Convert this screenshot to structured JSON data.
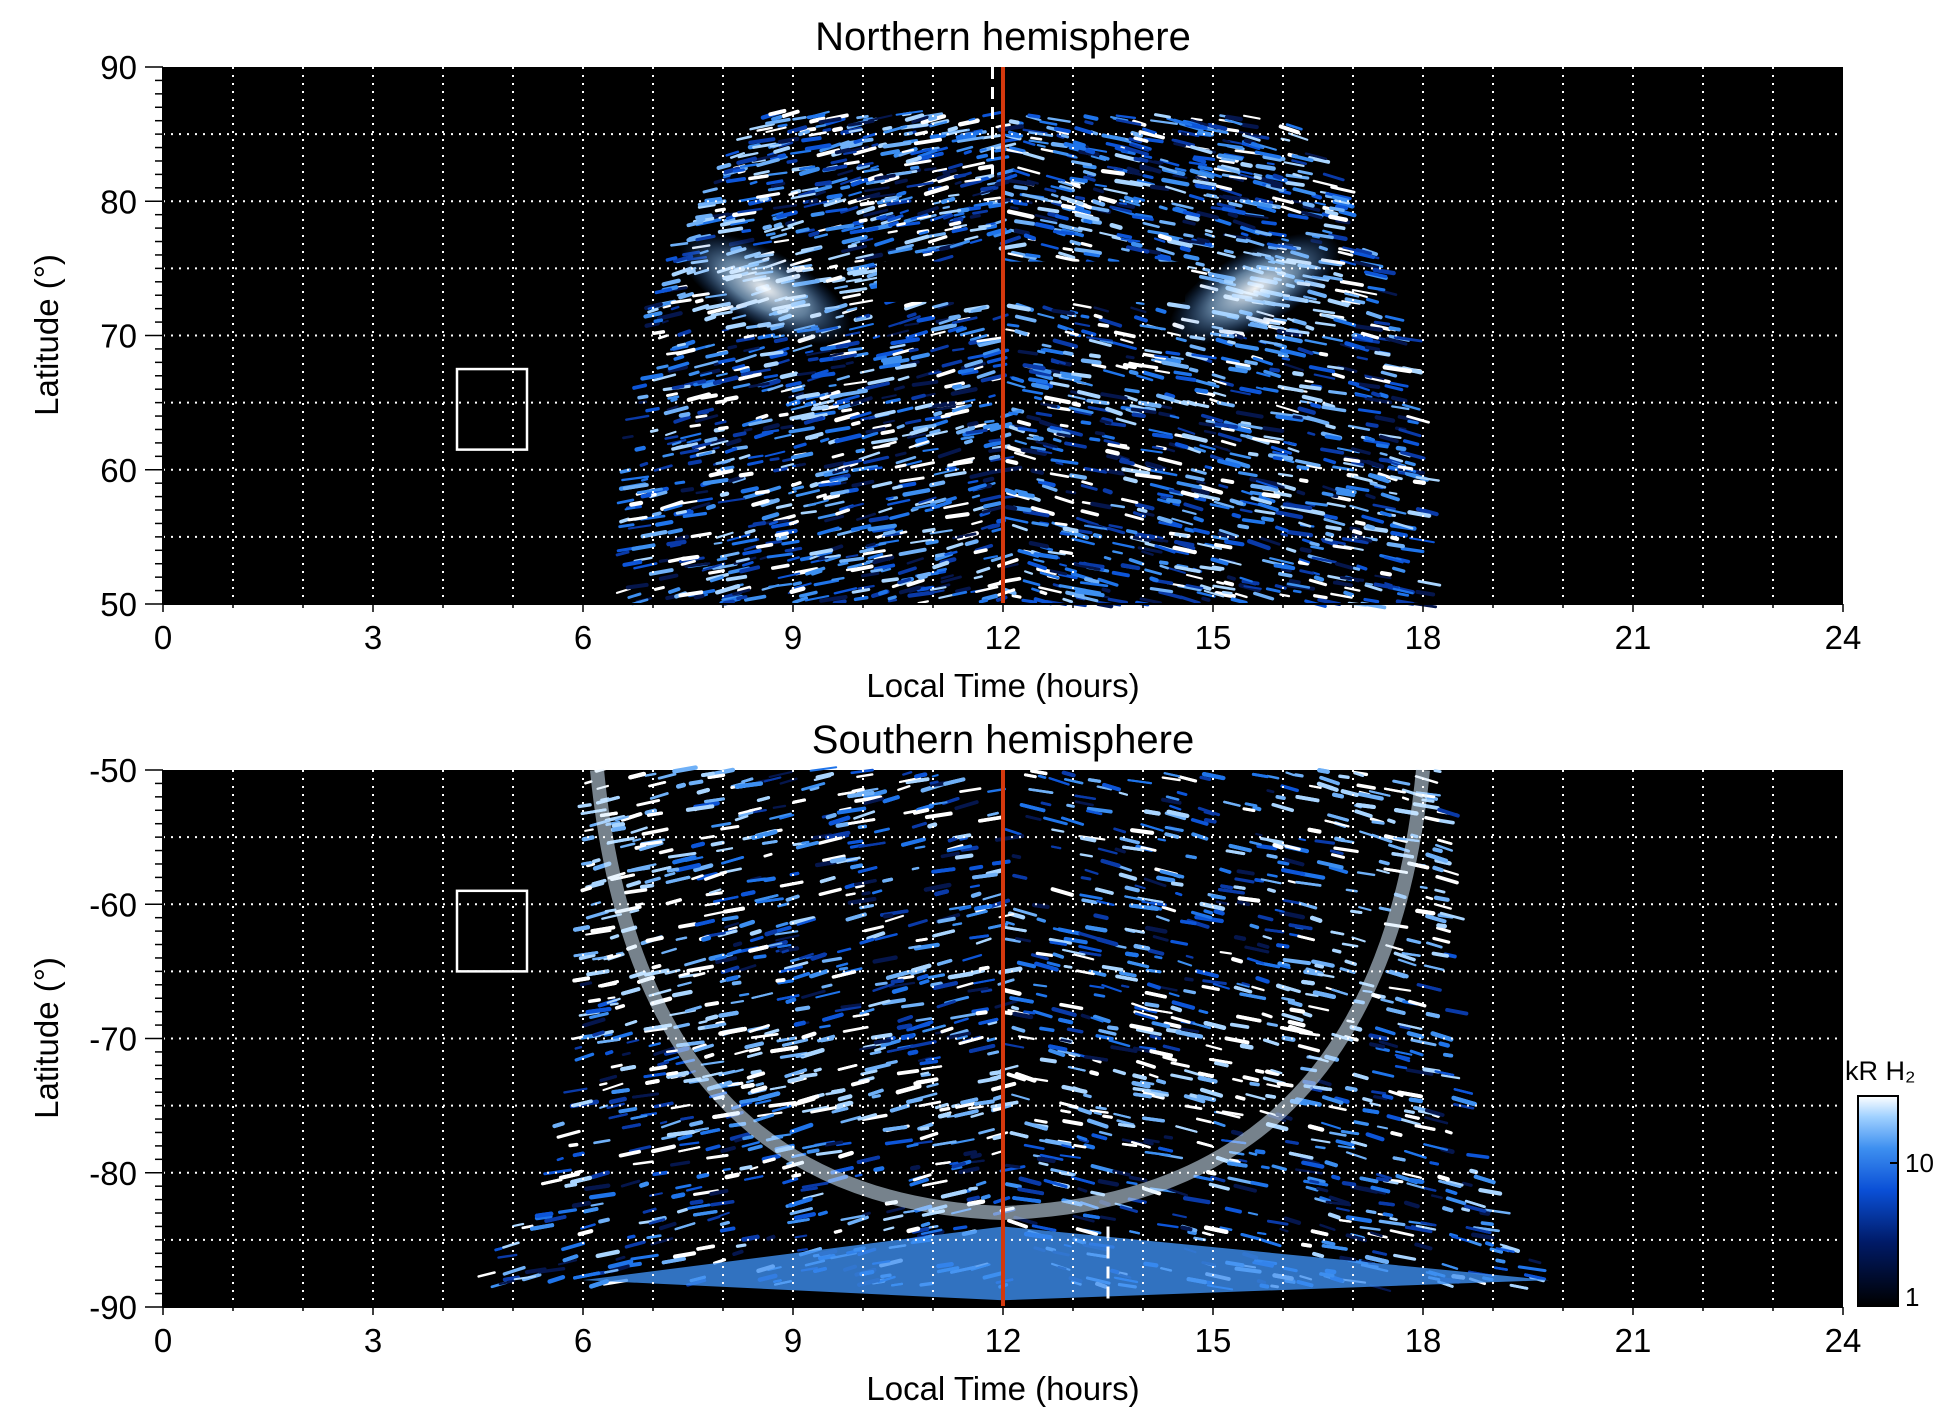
{
  "chart_data": [
    {
      "type": "heatmap",
      "title": "Northern hemisphere",
      "xlabel": "Local Time (hours)",
      "ylabel": "Latitude (°)",
      "xlim": [
        0,
        24
      ],
      "ylim": [
        50,
        90
      ],
      "xticks": [
        "0",
        "3",
        "6",
        "9",
        "12",
        "15",
        "18",
        "21",
        "24"
      ],
      "yticks": [
        "50",
        "60",
        "70",
        "80",
        "90"
      ],
      "grid": true,
      "background": "#000000",
      "emission_region": {
        "lt_min": 6.5,
        "lt_max": 18.0,
        "lat_top": 86.5
      },
      "bright_arcs": [
        {
          "lt_center": 8.6,
          "lat_center": 73.5
        },
        {
          "lt_center": 15.6,
          "lat_center": 73.5
        }
      ],
      "dark_band": {
        "lt_min": 10.2,
        "lt_max": 14.6,
        "lat_min": 72.5,
        "lat_max": 75.5
      },
      "reference_lines": [
        {
          "lt": 12.0,
          "color": "#d4380d",
          "style": "solid"
        },
        {
          "lt": 11.85,
          "color": "#ffffff",
          "style": "dashed",
          "lat_min": 82,
          "lat_max": 90
        }
      ],
      "box": {
        "lt_min": 4.2,
        "lt_max": 5.2,
        "lat_min": 61.5,
        "lat_max": 67.5
      }
    },
    {
      "type": "heatmap",
      "title": "Southern hemisphere",
      "xlabel": "Local Time (hours)",
      "ylabel": "Latitude (°)",
      "xlim": [
        0,
        24
      ],
      "ylim": [
        -90,
        -50
      ],
      "xticks": [
        "0",
        "3",
        "6",
        "9",
        "12",
        "15",
        "18",
        "21",
        "24"
      ],
      "yticks": [
        "-90",
        "-80",
        "-70",
        "-60",
        "-50"
      ],
      "grid": true,
      "background": "#000000",
      "emission_region": {
        "lt_min": 5.9,
        "lt_max": 18.3,
        "lat_bottom": -88.5
      },
      "bright_oval": {
        "lt_center": 12.0,
        "lat_center": -60.0
      },
      "reference_lines": [
        {
          "lt": 12.0,
          "color": "#d4380d",
          "style": "solid"
        },
        {
          "lt": 13.5,
          "color": "#ffffff",
          "style": "dashed",
          "lat_min": -90,
          "lat_max": -84
        }
      ],
      "box": {
        "lt_min": 4.2,
        "lt_max": 5.2,
        "lat_min": -65.0,
        "lat_max": -59.0
      }
    }
  ],
  "colorbar": {
    "title": "kR H₂",
    "tick_labels": [
      "10",
      "1"
    ],
    "scale": "log",
    "colors": [
      "#000000",
      "#001a66",
      "#0a4fd6",
      "#3d8ff0",
      "#9fd0ff",
      "#ffffff"
    ]
  }
}
